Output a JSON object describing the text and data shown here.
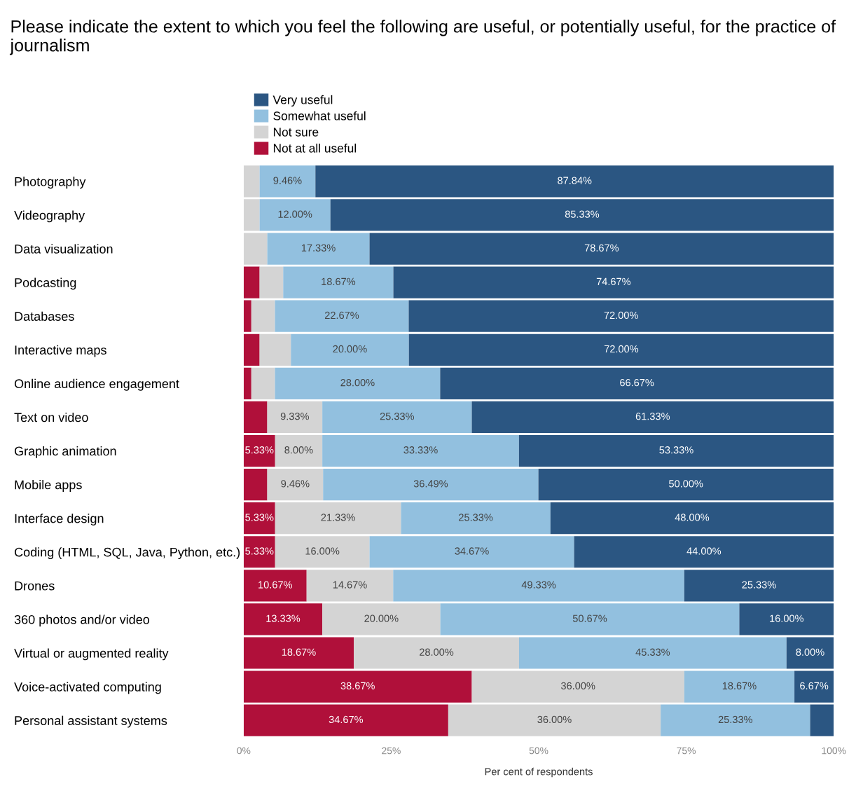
{
  "chart_data": {
    "type": "bar",
    "orientation": "horizontal",
    "stacked": true,
    "title": "Please indicate the extent to which you feel the following are useful, or potentially useful, for the practice of journalism",
    "xlabel": "Per cent of respondents",
    "categories": [
      "Photography",
      "Videography",
      "Data visualization",
      "Podcasting",
      "Databases",
      "Interactive maps",
      "Online audience engagement",
      "Text on video",
      "Graphic animation",
      "Mobile apps",
      "Interface design",
      "Coding (HTML, SQL, Java, Python, etc.)",
      "Drones",
      "360 photos and/or video",
      "Virtual or augmented reality",
      "Voice-activated computing",
      "Personal assistant systems"
    ],
    "series": [
      {
        "name": "Not at all useful",
        "color": "#b0103a",
        "values": [
          0,
          0,
          0,
          2.7,
          1.3,
          2.7,
          1.3,
          4.0,
          5.33,
          4.0,
          5.33,
          5.33,
          10.67,
          13.33,
          18.67,
          38.67,
          34.67
        ],
        "value_labels": [
          null,
          null,
          null,
          null,
          null,
          null,
          null,
          null,
          "5.33%",
          null,
          "5.33%",
          "5.33%",
          "10.67%",
          "13.33%",
          "18.67%",
          "38.67%",
          "34.67%"
        ]
      },
      {
        "name": "Not sure",
        "color": "#d4d4d4",
        "values": [
          2.7,
          2.7,
          4.0,
          4.0,
          4.0,
          5.3,
          4.0,
          9.33,
          8.0,
          9.46,
          21.33,
          16.0,
          14.67,
          20.0,
          28.0,
          36.0,
          36.0
        ],
        "value_labels": [
          null,
          null,
          null,
          null,
          null,
          null,
          null,
          "9.33%",
          "8.00%",
          "9.46%",
          "21.33%",
          "16.00%",
          "14.67%",
          "20.00%",
          "28.00%",
          "36.00%",
          "36.00%"
        ]
      },
      {
        "name": "Somewhat useful",
        "color": "#92c0df",
        "values": [
          9.46,
          12.0,
          17.33,
          18.67,
          22.67,
          20.0,
          28.0,
          25.33,
          33.33,
          36.49,
          25.33,
          34.67,
          49.33,
          50.67,
          45.33,
          18.67,
          25.33
        ],
        "value_labels": [
          "9.46%",
          "12.00%",
          "17.33%",
          "18.67%",
          "22.67%",
          "20.00%",
          "28.00%",
          "25.33%",
          "33.33%",
          "36.49%",
          "25.33%",
          "34.67%",
          "49.33%",
          "50.67%",
          "45.33%",
          "18.67%",
          "25.33%"
        ]
      },
      {
        "name": "Very useful",
        "color": "#2b5682",
        "values": [
          87.84,
          85.33,
          78.67,
          74.67,
          72.0,
          72.0,
          66.67,
          61.33,
          53.33,
          50.0,
          48.0,
          44.0,
          25.33,
          16.0,
          8.0,
          6.67,
          4.0
        ],
        "value_labels": [
          "87.84%",
          "85.33%",
          "78.67%",
          "74.67%",
          "72.00%",
          "72.00%",
          "66.67%",
          "61.33%",
          "53.33%",
          "50.00%",
          "48.00%",
          "44.00%",
          "25.33%",
          "16.00%",
          "8.00%",
          "6.67%",
          null
        ]
      }
    ],
    "xlim": [
      0,
      100
    ],
    "xticks": [
      {
        "value": 0,
        "label": "0%"
      },
      {
        "value": 25,
        "label": "25%"
      },
      {
        "value": 50,
        "label": "50%"
      },
      {
        "value": 75,
        "label": "75%"
      },
      {
        "value": 100,
        "label": "100%"
      }
    ],
    "legend": "top left",
    "grid": false
  }
}
